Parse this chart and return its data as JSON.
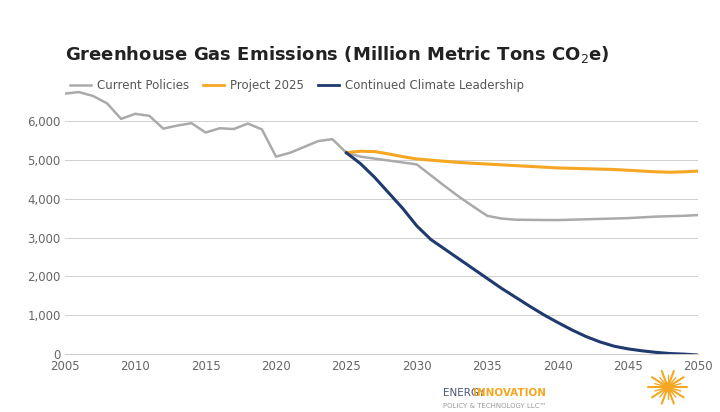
{
  "title": "Greenhouse Gas Emissions (Million Metric Tons CO₂e)",
  "title_fontsize": 13,
  "background_color": "#ffffff",
  "legend_labels": [
    "Current Policies",
    "Project 2025",
    "Continued Climate Leadership"
  ],
  "legend_colors": [
    "#aaaaaa",
    "#f5a623",
    "#1f3a6e"
  ],
  "ylim": [
    0,
    7200
  ],
  "yticks": [
    0,
    1000,
    2000,
    3000,
    4000,
    5000,
    6000
  ],
  "xlim": [
    2005,
    2050
  ],
  "xticks": [
    2005,
    2010,
    2015,
    2020,
    2025,
    2030,
    2035,
    2040,
    2045,
    2050
  ],
  "current_policies": {
    "years": [
      2005,
      2006,
      2007,
      2008,
      2009,
      2010,
      2011,
      2012,
      2013,
      2014,
      2015,
      2016,
      2017,
      2018,
      2019,
      2020,
      2021,
      2022,
      2023,
      2024,
      2025,
      2026,
      2027,
      2028,
      2029,
      2030,
      2031,
      2032,
      2033,
      2034,
      2035,
      2036,
      2037,
      2038,
      2039,
      2040,
      2041,
      2042,
      2043,
      2044,
      2045,
      2046,
      2047,
      2048,
      2049,
      2050
    ],
    "values": [
      6700,
      6740,
      6640,
      6450,
      6050,
      6180,
      6130,
      5800,
      5880,
      5940,
      5700,
      5810,
      5790,
      5930,
      5780,
      5080,
      5180,
      5330,
      5480,
      5530,
      5180,
      5080,
      5030,
      4980,
      4930,
      4880,
      4600,
      4320,
      4050,
      3800,
      3560,
      3490,
      3460,
      3455,
      3452,
      3450,
      3460,
      3470,
      3480,
      3490,
      3500,
      3520,
      3540,
      3550,
      3560,
      3580
    ],
    "color": "#aaaaaa",
    "linewidth": 1.8
  },
  "project_2025": {
    "years": [
      2025,
      2026,
      2027,
      2028,
      2029,
      2030,
      2031,
      2032,
      2033,
      2034,
      2035,
      2036,
      2037,
      2038,
      2039,
      2040,
      2041,
      2042,
      2043,
      2044,
      2045,
      2046,
      2047,
      2048,
      2049,
      2050
    ],
    "values": [
      5180,
      5220,
      5210,
      5150,
      5080,
      5020,
      4990,
      4960,
      4930,
      4910,
      4890,
      4870,
      4850,
      4830,
      4810,
      4790,
      4780,
      4770,
      4760,
      4750,
      4730,
      4710,
      4690,
      4680,
      4690,
      4710
    ],
    "color": "#f5a623",
    "linewidth": 2.2
  },
  "climate_leadership": {
    "years": [
      2025,
      2026,
      2027,
      2028,
      2029,
      2030,
      2031,
      2032,
      2033,
      2034,
      2035,
      2036,
      2037,
      2038,
      2039,
      2040,
      2041,
      2042,
      2043,
      2044,
      2045,
      2046,
      2047,
      2048,
      2049,
      2050
    ],
    "values": [
      5180,
      4900,
      4550,
      4150,
      3750,
      3300,
      2950,
      2700,
      2450,
      2200,
      1950,
      1700,
      1470,
      1240,
      1020,
      820,
      630,
      460,
      320,
      210,
      140,
      90,
      50,
      20,
      5,
      -20
    ],
    "color": "#1f3a6e",
    "linewidth": 2.2
  },
  "grid_color": "#d0d0d0",
  "grid_linewidth": 0.7,
  "logo_energy_color": "#4a5577",
  "logo_innovation_color": "#f5a623",
  "logo_sub_color": "#999999",
  "logo_sun_color": "#f5a623"
}
